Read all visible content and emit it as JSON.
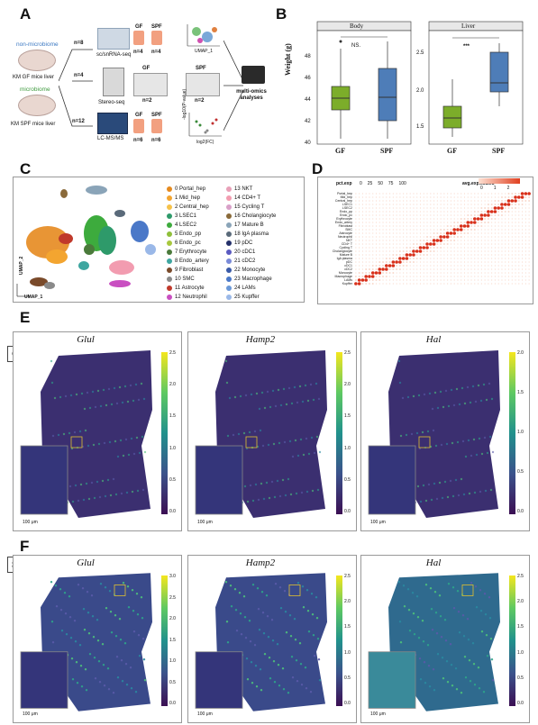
{
  "panels": {
    "A": {
      "label": "A",
      "mice": [
        {
          "title": "non-microbiome",
          "subtitle": "KM GF mice liver",
          "color": "#3b78c2"
        },
        {
          "title": "microbiome",
          "subtitle": "KM SPF mice liver",
          "color": "#3e9a3e"
        }
      ],
      "rows": [
        {
          "n": "n=8",
          "method": "sc/snRNA-seq",
          "gf": "GF",
          "spf": "SPF",
          "gf_n": "n=4",
          "spf_n": "n=4",
          "umap": "UMAP_2",
          "umap1": "UMAP_1"
        },
        {
          "n": "n=4",
          "method": "Stereo-seq",
          "gf": "GF",
          "spf": "SPF",
          "gf_n": "n=2",
          "spf_n": "n=2"
        },
        {
          "n": "n=12",
          "method": "LC-MS/MS",
          "gf": "GF",
          "spf": "SPF",
          "gf_n": "n=6",
          "spf_n": "n=6",
          "axis_y": "-log10(P-value)",
          "axis_x": "log2(FC)"
        }
      ],
      "output": "multi-omics analyses"
    },
    "B": {
      "label": "B",
      "ylabel": "Weight (g)",
      "body": {
        "title": "Body",
        "sig": "NS.",
        "yticks": [
          "40",
          "42",
          "44",
          "46",
          "48"
        ]
      },
      "liver": {
        "title": "Liver",
        "sig": "***",
        "yticks": [
          "1.5",
          "2.0",
          "2.5"
        ]
      },
      "groups": [
        "GF",
        "SPF"
      ]
    },
    "C": {
      "label": "C",
      "umap_y": "UMAP_2",
      "umap_x": "UMAP_1",
      "clusters": [
        {
          "id": "0 Portal_hep",
          "color": "#e58a1f"
        },
        {
          "id": "1 Mid_hep",
          "color": "#f3a530"
        },
        {
          "id": "2 Central_hep",
          "color": "#f6c24a"
        },
        {
          "id": "3 LSEC1",
          "color": "#2e9a6a"
        },
        {
          "id": "4 LSEC2",
          "color": "#3dab3d"
        },
        {
          "id": "5 Endo_pp",
          "color": "#8fbf3a"
        },
        {
          "id": "6 Endo_pc",
          "color": "#a8c83e"
        },
        {
          "id": "7 Erythrocyte",
          "color": "#4a7a3a"
        },
        {
          "id": "8 Endo_artery",
          "color": "#3ea6a0"
        },
        {
          "id": "9 Fibroblast",
          "color": "#7a4a2a"
        },
        {
          "id": "10 SMC",
          "color": "#8a8a8a"
        },
        {
          "id": "11 Astrocyte",
          "color": "#c0392b"
        },
        {
          "id": "12 Neutrophil",
          "color": "#c94fc1"
        },
        {
          "id": "13 NKT",
          "color": "#e8a0b8"
        },
        {
          "id": "14 CD4+ T",
          "color": "#f29cb0"
        },
        {
          "id": "15 Cycling T",
          "color": "#d8a0c8"
        },
        {
          "id": "16 Cholangiocyte",
          "color": "#8a6a3a"
        },
        {
          "id": "17 Mature B",
          "color": "#8aa4b8"
        },
        {
          "id": "18 IgA plasma",
          "color": "#5a6a7a"
        },
        {
          "id": "19 pDC",
          "color": "#24306a"
        },
        {
          "id": "20 cDC1",
          "color": "#5a5ac0"
        },
        {
          "id": "21 cDC2",
          "color": "#7a8ad8"
        },
        {
          "id": "22 Monocyte",
          "color": "#3a5aa8"
        },
        {
          "id": "23 Macrophage",
          "color": "#4a78c8"
        },
        {
          "id": "24 LAMs",
          "color": "#6a98d8"
        },
        {
          "id": "25 Kupffer",
          "color": "#9ab8e8"
        }
      ]
    },
    "D": {
      "label": "D",
      "legend_pct": "pct.exp",
      "pct_values": [
        "0",
        "25",
        "50",
        "75",
        "100"
      ],
      "legend_avg": "avg.exp.scaled",
      "avg_ticks": [
        "0",
        "1",
        "2"
      ],
      "rows": [
        "Portal_hep",
        "Mid_hep",
        "Central_hep",
        "LSEC1",
        "LSEC2",
        "Endo_pp",
        "Endo_pc",
        "Erythrocyte",
        "Endo_artery",
        "Fibroblast",
        "SMC",
        "Astrocyte",
        "Neutrophil",
        "NKT",
        "CD4+ T",
        "Cycling T",
        "Cholangiocyte",
        "Mature B",
        "IgA plasma",
        "pDC",
        "cDC1",
        "cDC2",
        "Monocyte",
        "Macrophage",
        "LAMs",
        "Kupffer"
      ]
    },
    "E": {
      "label": "E",
      "sample": "GF",
      "genes": [
        {
          "name": "Glul",
          "ticks": [
            "2.5",
            "2.0",
            "1.5",
            "1.0",
            "0.5",
            "0.0"
          ]
        },
        {
          "name": "Hamp2",
          "ticks": [
            "2.5",
            "2.0",
            "1.5",
            "1.0",
            "0.5",
            "0.0"
          ]
        },
        {
          "name": "Hal",
          "ticks": [
            "2.0",
            "1.5",
            "1.0",
            "0.5",
            "0.0"
          ]
        }
      ],
      "scale": "100 μm"
    },
    "F": {
      "label": "F",
      "sample": "SPF",
      "genes": [
        {
          "name": "Glul",
          "ticks": [
            "3.0",
            "2.5",
            "2.0",
            "1.5",
            "1.0",
            "0.5",
            "0.0"
          ]
        },
        {
          "name": "Hamp2",
          "ticks": [
            "2.5",
            "2.0",
            "1.5",
            "1.0",
            "0.5",
            "0.0"
          ]
        },
        {
          "name": "Hal",
          "ticks": [
            "2.5",
            "2.0",
            "1.5",
            "1.0",
            "0.5",
            "0.0"
          ]
        }
      ],
      "scale": "100 μm"
    }
  },
  "colors": {
    "gf_box": "#7cad2a",
    "spf_box": "#4e7db8",
    "viridis_top": "#f4e61e",
    "viridis_bottom": "#3b0f53"
  }
}
